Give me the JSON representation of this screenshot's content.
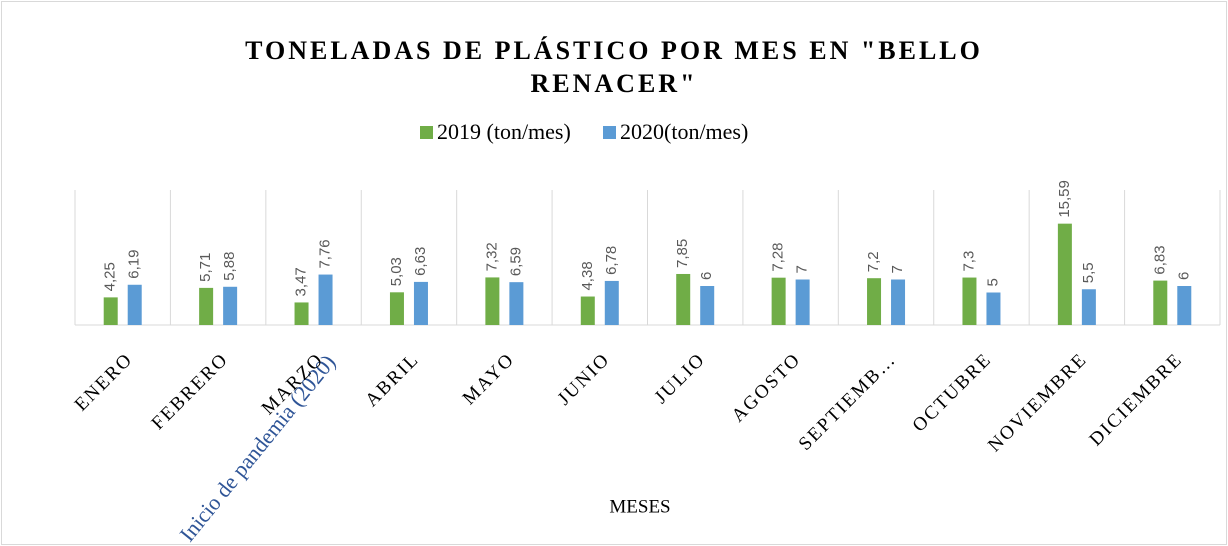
{
  "chart_data": {
    "type": "bar",
    "title": "TONELADAS DE PLÁSTICO POR MES EN \"BELLO RENACER\"",
    "x_label": "MESES",
    "annotation": "Inicio de pandemia (2020)",
    "categories": [
      "ENERO",
      "FEBRERO",
      "MARZO",
      "ABRIL",
      "MAYO",
      "JUNIO",
      "JULIO",
      "AGOSTO",
      "SEPTIEMB…",
      "OCTUBRE",
      "NOVIEMBRE",
      "DICIEMBRE"
    ],
    "series": [
      {
        "name": "2019 (ton/mes)",
        "color": "#70ad47",
        "values": [
          4.25,
          5.71,
          3.47,
          5.03,
          7.32,
          4.38,
          7.85,
          7.28,
          7.2,
          7.3,
          15.59,
          6.83
        ],
        "value_labels": [
          "4,25",
          "5,71",
          "3,47",
          "5,03",
          "7,32",
          "4,38",
          "7,85",
          "7,28",
          "7,2",
          "7,3",
          "15,59",
          "6,83"
        ]
      },
      {
        "name": "2020(ton/mes)",
        "color": "#5b9bd5",
        "values": [
          6.19,
          5.88,
          7.76,
          6.63,
          6.59,
          6.78,
          6,
          7,
          7,
          5,
          5.5,
          6
        ],
        "value_labels": [
          "6,19",
          "5,88",
          "7,76",
          "6,63",
          "6,59",
          "6,78",
          "6",
          "7",
          "7",
          "5",
          "5,5",
          "6"
        ]
      }
    ],
    "ylim": [
      0,
      20
    ],
    "legend": "top"
  }
}
